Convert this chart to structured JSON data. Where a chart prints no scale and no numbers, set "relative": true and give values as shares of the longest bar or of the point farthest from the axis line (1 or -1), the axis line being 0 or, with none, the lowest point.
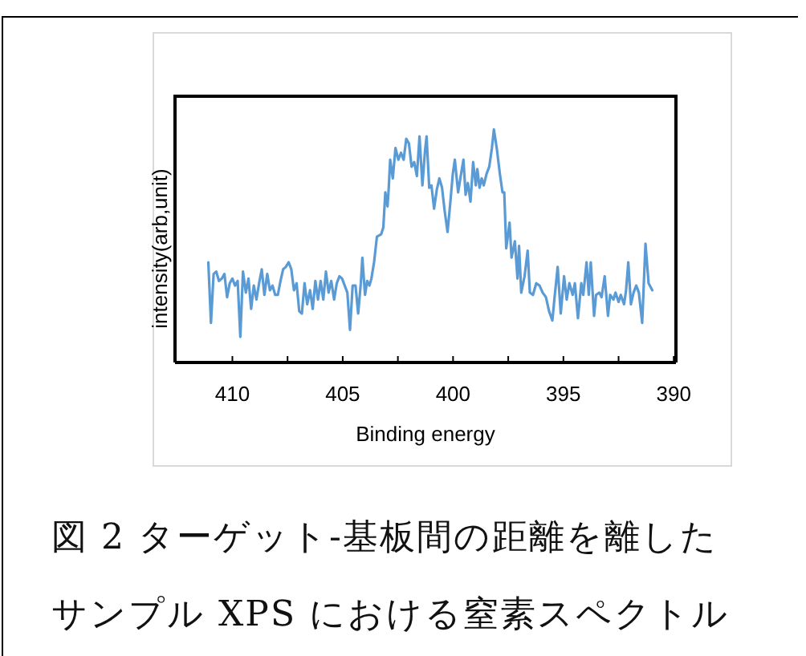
{
  "chart_data": {
    "type": "line",
    "relative": true,
    "title": "図 2 ターゲット-基板間の距離を離したサンプル XPS における窒素スペクトル",
    "xlabel": "Binding energy",
    "ylabel": "intensity(arb,unit)",
    "xlim": [
      412.6,
      389.9
    ],
    "xticks": [
      410,
      {
        "value": 407.5,
        "label": null
      },
      405,
      {
        "value": 402.5,
        "label": null
      },
      400,
      {
        "value": 397.5,
        "label": null
      },
      395,
      {
        "value": 392.5,
        "label": null
      },
      390
    ],
    "marker": "none",
    "line_style": "solid",
    "series": [
      {
        "color": "#5b9bd5",
        "x": [
          411.09,
          410.97,
          410.85,
          410.73,
          410.61,
          410.48,
          410.36,
          410.24,
          410.12,
          410.0,
          409.88,
          409.76,
          409.64,
          409.52,
          409.39,
          409.27,
          409.15,
          409.03,
          408.91,
          408.79,
          408.67,
          408.55,
          408.42,
          408.3,
          408.18,
          408.06,
          407.94,
          407.82,
          407.7,
          407.58,
          407.45,
          407.33,
          407.21,
          407.09,
          406.97,
          406.85,
          406.73,
          406.61,
          406.48,
          406.36,
          406.24,
          406.12,
          406.0,
          405.88,
          405.76,
          405.64,
          405.52,
          405.39,
          405.27,
          405.15,
          405.03,
          404.91,
          404.79,
          404.67,
          404.55,
          404.42,
          404.3,
          404.18,
          404.11,
          403.99,
          403.89,
          403.79,
          403.7,
          403.58,
          403.45,
          403.26,
          403.16,
          403.07,
          402.97,
          402.92,
          402.85,
          402.73,
          402.61,
          402.48,
          402.36,
          402.24,
          402.12,
          402.0,
          401.88,
          401.76,
          401.64,
          401.52,
          401.39,
          401.27,
          401.2,
          401.08,
          400.98,
          400.86,
          400.74,
          400.62,
          400.5,
          400.38,
          400.25,
          400.13,
          400.01,
          399.92,
          399.77,
          399.67,
          399.53,
          399.43,
          399.33,
          399.21,
          399.09,
          398.97,
          398.9,
          398.8,
          398.7,
          398.61,
          398.48,
          398.36,
          398.24,
          398.15,
          398.02,
          397.88,
          397.76,
          397.68,
          397.59,
          397.44,
          397.35,
          397.2,
          397.08,
          397.01,
          396.91,
          396.76,
          396.62,
          396.52,
          396.38,
          396.23,
          396.08,
          395.94,
          395.79,
          395.65,
          395.5,
          395.41,
          395.26,
          395.12,
          394.97,
          394.85,
          394.73,
          394.58,
          394.48,
          394.34,
          394.19,
          394.1,
          393.95,
          393.85,
          393.76,
          393.61,
          393.52,
          393.37,
          393.27,
          393.13,
          392.98,
          392.88,
          392.73,
          392.64,
          392.5,
          392.4,
          392.25,
          392.16,
          392.06,
          391.94,
          391.82,
          391.7,
          391.58,
          391.43,
          391.28,
          391.14,
          390.97
        ],
        "values": [
          0.43,
          0.17,
          0.38,
          0.39,
          0.35,
          0.36,
          0.38,
          0.28,
          0.34,
          0.36,
          0.33,
          0.35,
          0.11,
          0.39,
          0.3,
          0.36,
          0.23,
          0.33,
          0.27,
          0.34,
          0.4,
          0.29,
          0.38,
          0.31,
          0.33,
          0.29,
          0.29,
          0.35,
          0.4,
          0.41,
          0.43,
          0.4,
          0.31,
          0.34,
          0.22,
          0.21,
          0.34,
          0.25,
          0.31,
          0.23,
          0.35,
          0.27,
          0.35,
          0.27,
          0.39,
          0.3,
          0.35,
          0.27,
          0.34,
          0.37,
          0.36,
          0.33,
          0.3,
          0.14,
          0.33,
          0.33,
          0.21,
          0.34,
          0.45,
          0.29,
          0.35,
          0.33,
          0.36,
          0.43,
          0.54,
          0.55,
          0.58,
          0.73,
          0.67,
          0.74,
          0.87,
          0.79,
          0.92,
          0.87,
          0.9,
          0.87,
          0.96,
          0.94,
          0.84,
          0.86,
          0.8,
          0.97,
          0.76,
          0.91,
          0.97,
          0.75,
          0.76,
          0.66,
          0.74,
          0.79,
          0.75,
          0.65,
          0.56,
          0.68,
          0.81,
          0.87,
          0.73,
          0.79,
          0.87,
          0.72,
          0.77,
          0.69,
          0.86,
          0.76,
          0.83,
          0.75,
          0.79,
          0.76,
          0.81,
          0.84,
          0.92,
          1.0,
          0.92,
          0.81,
          0.73,
          0.73,
          0.49,
          0.6,
          0.45,
          0.52,
          0.36,
          0.5,
          0.3,
          0.37,
          0.48,
          0.3,
          0.29,
          0.34,
          0.33,
          0.3,
          0.28,
          0.22,
          0.18,
          0.27,
          0.41,
          0.21,
          0.37,
          0.27,
          0.34,
          0.29,
          0.34,
          0.19,
          0.34,
          0.29,
          0.43,
          0.29,
          0.43,
          0.2,
          0.29,
          0.3,
          0.28,
          0.37,
          0.2,
          0.29,
          0.27,
          0.3,
          0.26,
          0.29,
          0.25,
          0.31,
          0.43,
          0.25,
          0.3,
          0.33,
          0.3,
          0.17,
          0.51,
          0.34,
          0.31
        ]
      }
    ]
  }
}
